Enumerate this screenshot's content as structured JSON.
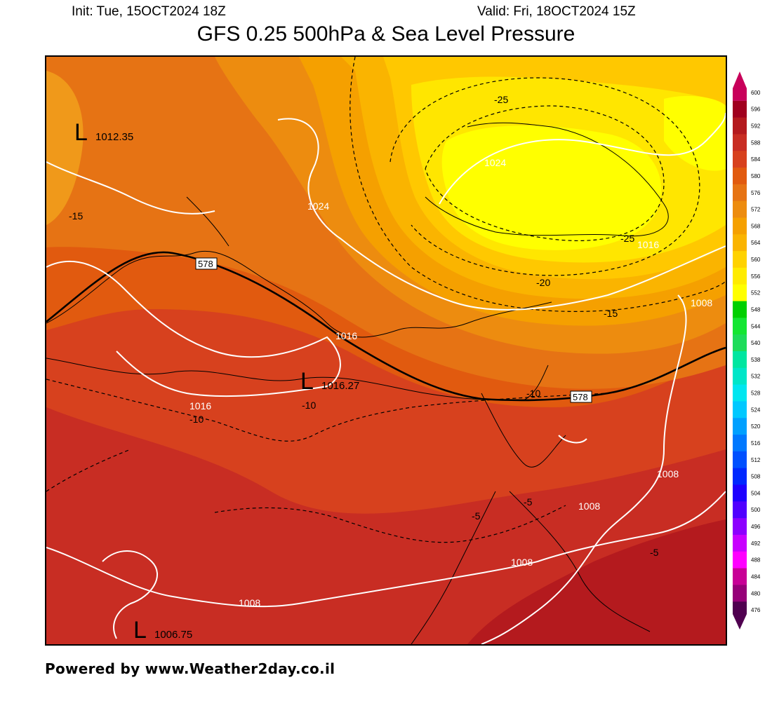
{
  "header": {
    "init": "Init: Tue, 15OCT2024 18Z",
    "valid": "Valid: Fri, 18OCT2024 15Z",
    "title": "GFS 0.25 500hPa & Sea Level Pressure"
  },
  "footer": {
    "text": "Powered by www.Weather2day.co.il"
  },
  "pressure_centers": [
    {
      "symbol": "L",
      "value": "1012.35"
    },
    {
      "symbol": "L",
      "value": "1016.27"
    },
    {
      "symbol": "L",
      "value": "1006.75"
    }
  ],
  "isobar_labels": [
    "1024",
    "1024",
    "1016",
    "1016",
    "1016",
    "1008",
    "1008",
    "1008",
    "1008",
    "1008"
  ],
  "temperature_labels": [
    "-25",
    "-25",
    "-20",
    "-15",
    "-15",
    "-10",
    "-10",
    "-10",
    "-5",
    "-5",
    "-5"
  ],
  "height_contour_labels": [
    "578",
    "578"
  ],
  "colorbar": {
    "levels": [
      "600",
      "596",
      "592",
      "588",
      "584",
      "580",
      "576",
      "572",
      "568",
      "564",
      "560",
      "556",
      "552",
      "548",
      "544",
      "540",
      "538",
      "532",
      "528",
      "524",
      "520",
      "516",
      "512",
      "508",
      "504",
      "500",
      "496",
      "492",
      "488",
      "484",
      "480",
      "476"
    ],
    "colors": [
      "#c8005a",
      "#a0001e",
      "#b41a1e",
      "#c82d23",
      "#d7411e",
      "#e15a0f",
      "#e67314",
      "#ed8c0f",
      "#f5a000",
      "#fab400",
      "#ffd200",
      "#ffeb00",
      "#ffff00",
      "#00d000",
      "#14e632",
      "#1edc5a",
      "#00e6a0",
      "#00e6c8",
      "#00e6f0",
      "#00c8ff",
      "#00a0ff",
      "#0078ff",
      "#0050ff",
      "#0028ff",
      "#1e00ff",
      "#5000ff",
      "#8c00ff",
      "#c800ff",
      "#ff00ff",
      "#c80096",
      "#960078",
      "#500050"
    ]
  },
  "colors": {
    "high_core": "#ffff00",
    "background": "#e8861a",
    "isobar": "#ffffff",
    "height_contour": "#000000"
  }
}
